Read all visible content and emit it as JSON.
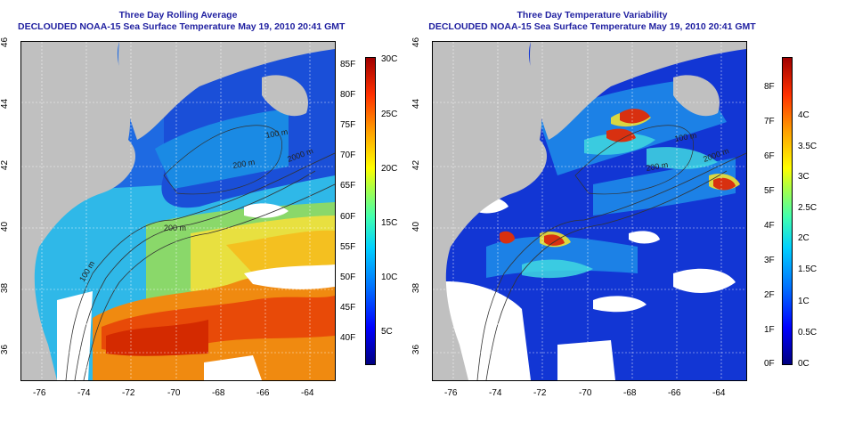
{
  "panels": [
    {
      "title": "Three Day Rolling Average",
      "subtitle": "DECLOUDED NOAA-15 Sea Surface Temperature May 19, 2010 20:41 GMT",
      "x_ticks": [
        "-76",
        "-74",
        "-72",
        "-70",
        "-68",
        "-66",
        "-64"
      ],
      "y_ticks": [
        "46",
        "44",
        "42",
        "40",
        "38",
        "36"
      ],
      "contour_labels": [
        "100 m",
        "200 m",
        "2000 m",
        "200 m",
        "100 m"
      ],
      "colorbar": {
        "left_labels": [
          "85F",
          "80F",
          "75F",
          "70F",
          "65F",
          "60F",
          "55F",
          "50F",
          "45F",
          "40F"
        ],
        "right_labels": [
          "30C",
          "25C",
          "20C",
          "15C",
          "10C",
          "5C"
        ]
      }
    },
    {
      "title": "Three Day Temperature Variability",
      "subtitle": "DECLOUDED NOAA-15 Sea Surface Temperature May 19, 2010 20:41 GMT",
      "x_ticks": [
        "-76",
        "-74",
        "-72",
        "-70",
        "-68",
        "-66",
        "-64"
      ],
      "y_ticks": [
        "46",
        "44",
        "42",
        "40",
        "38",
        "36"
      ],
      "contour_labels": [
        "100 m",
        "200 m",
        "2000 m"
      ],
      "colorbar": {
        "left_labels": [
          "8F",
          "7F",
          "6F",
          "5F",
          "4F",
          "3F",
          "2F",
          "1F",
          "0F"
        ],
        "right_labels": [
          "4C",
          "3.5C",
          "3C",
          "2.5C",
          "2C",
          "1.5C",
          "1C",
          "0.5C",
          "0C"
        ]
      }
    }
  ],
  "colors": {
    "title": "#1f1fa0",
    "land": "#c0c0c0",
    "cloud": "#ffffff",
    "warm": "#d42a00",
    "cold": "#1632c8"
  }
}
